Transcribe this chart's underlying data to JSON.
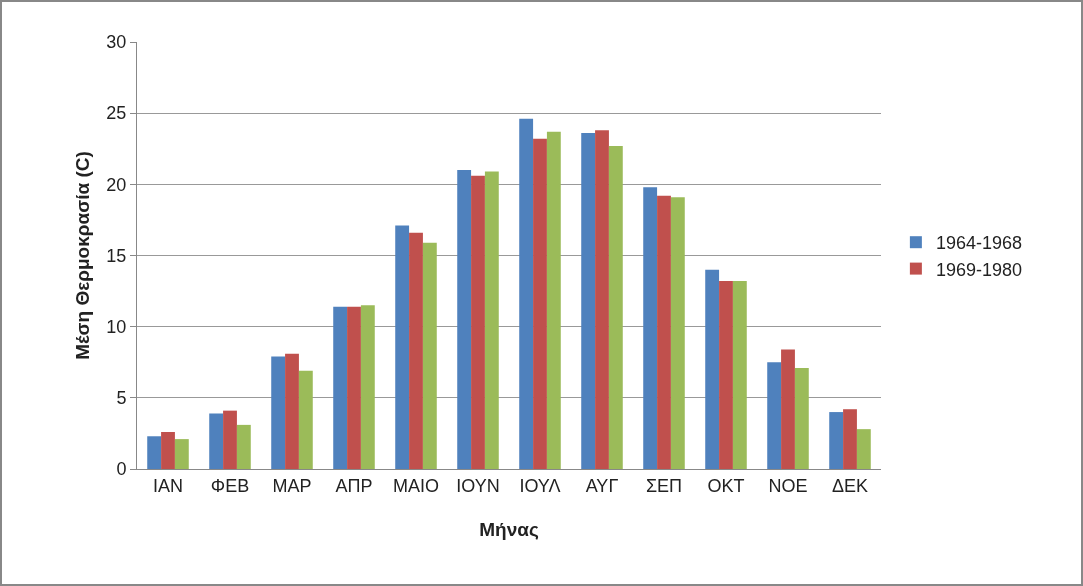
{
  "chart_data": {
    "type": "bar",
    "xlabel": "Μήνας",
    "ylabel": "Μέση Θερμοκρασία (C)",
    "categories": [
      "ΙΑΝ",
      "ΦΕΒ",
      "ΜΑΡ",
      "ΑΠΡ",
      "ΜΑΙΟ",
      "ΙΟΥΝ",
      "ΙΟΥΛ",
      "ΑΥΓ",
      "ΣΕΠ",
      "ΟΚΤ",
      "ΝΟΕ",
      "ΔΕΚ"
    ],
    "series": [
      {
        "name": "1964-1968",
        "color": "#4f81bd",
        "values": [
          2.3,
          3.9,
          7.9,
          11.4,
          17.1,
          21.0,
          24.6,
          23.6,
          19.8,
          14.0,
          7.5,
          4.0
        ]
      },
      {
        "name": "1969-1980",
        "color": "#c0504d",
        "values": [
          2.6,
          4.1,
          8.1,
          11.4,
          16.6,
          20.6,
          23.2,
          23.8,
          19.2,
          13.2,
          8.4,
          4.2
        ]
      },
      {
        "color": "#9bbb59",
        "values": [
          2.1,
          3.1,
          6.9,
          11.5,
          15.9,
          20.9,
          23.7,
          22.7,
          19.1,
          13.2,
          7.1,
          2.8
        ]
      }
    ],
    "ylim": [
      0,
      30
    ],
    "yticks": [
      0,
      5,
      10,
      15,
      20,
      25,
      30
    ],
    "grid": "y",
    "legend": "right"
  }
}
